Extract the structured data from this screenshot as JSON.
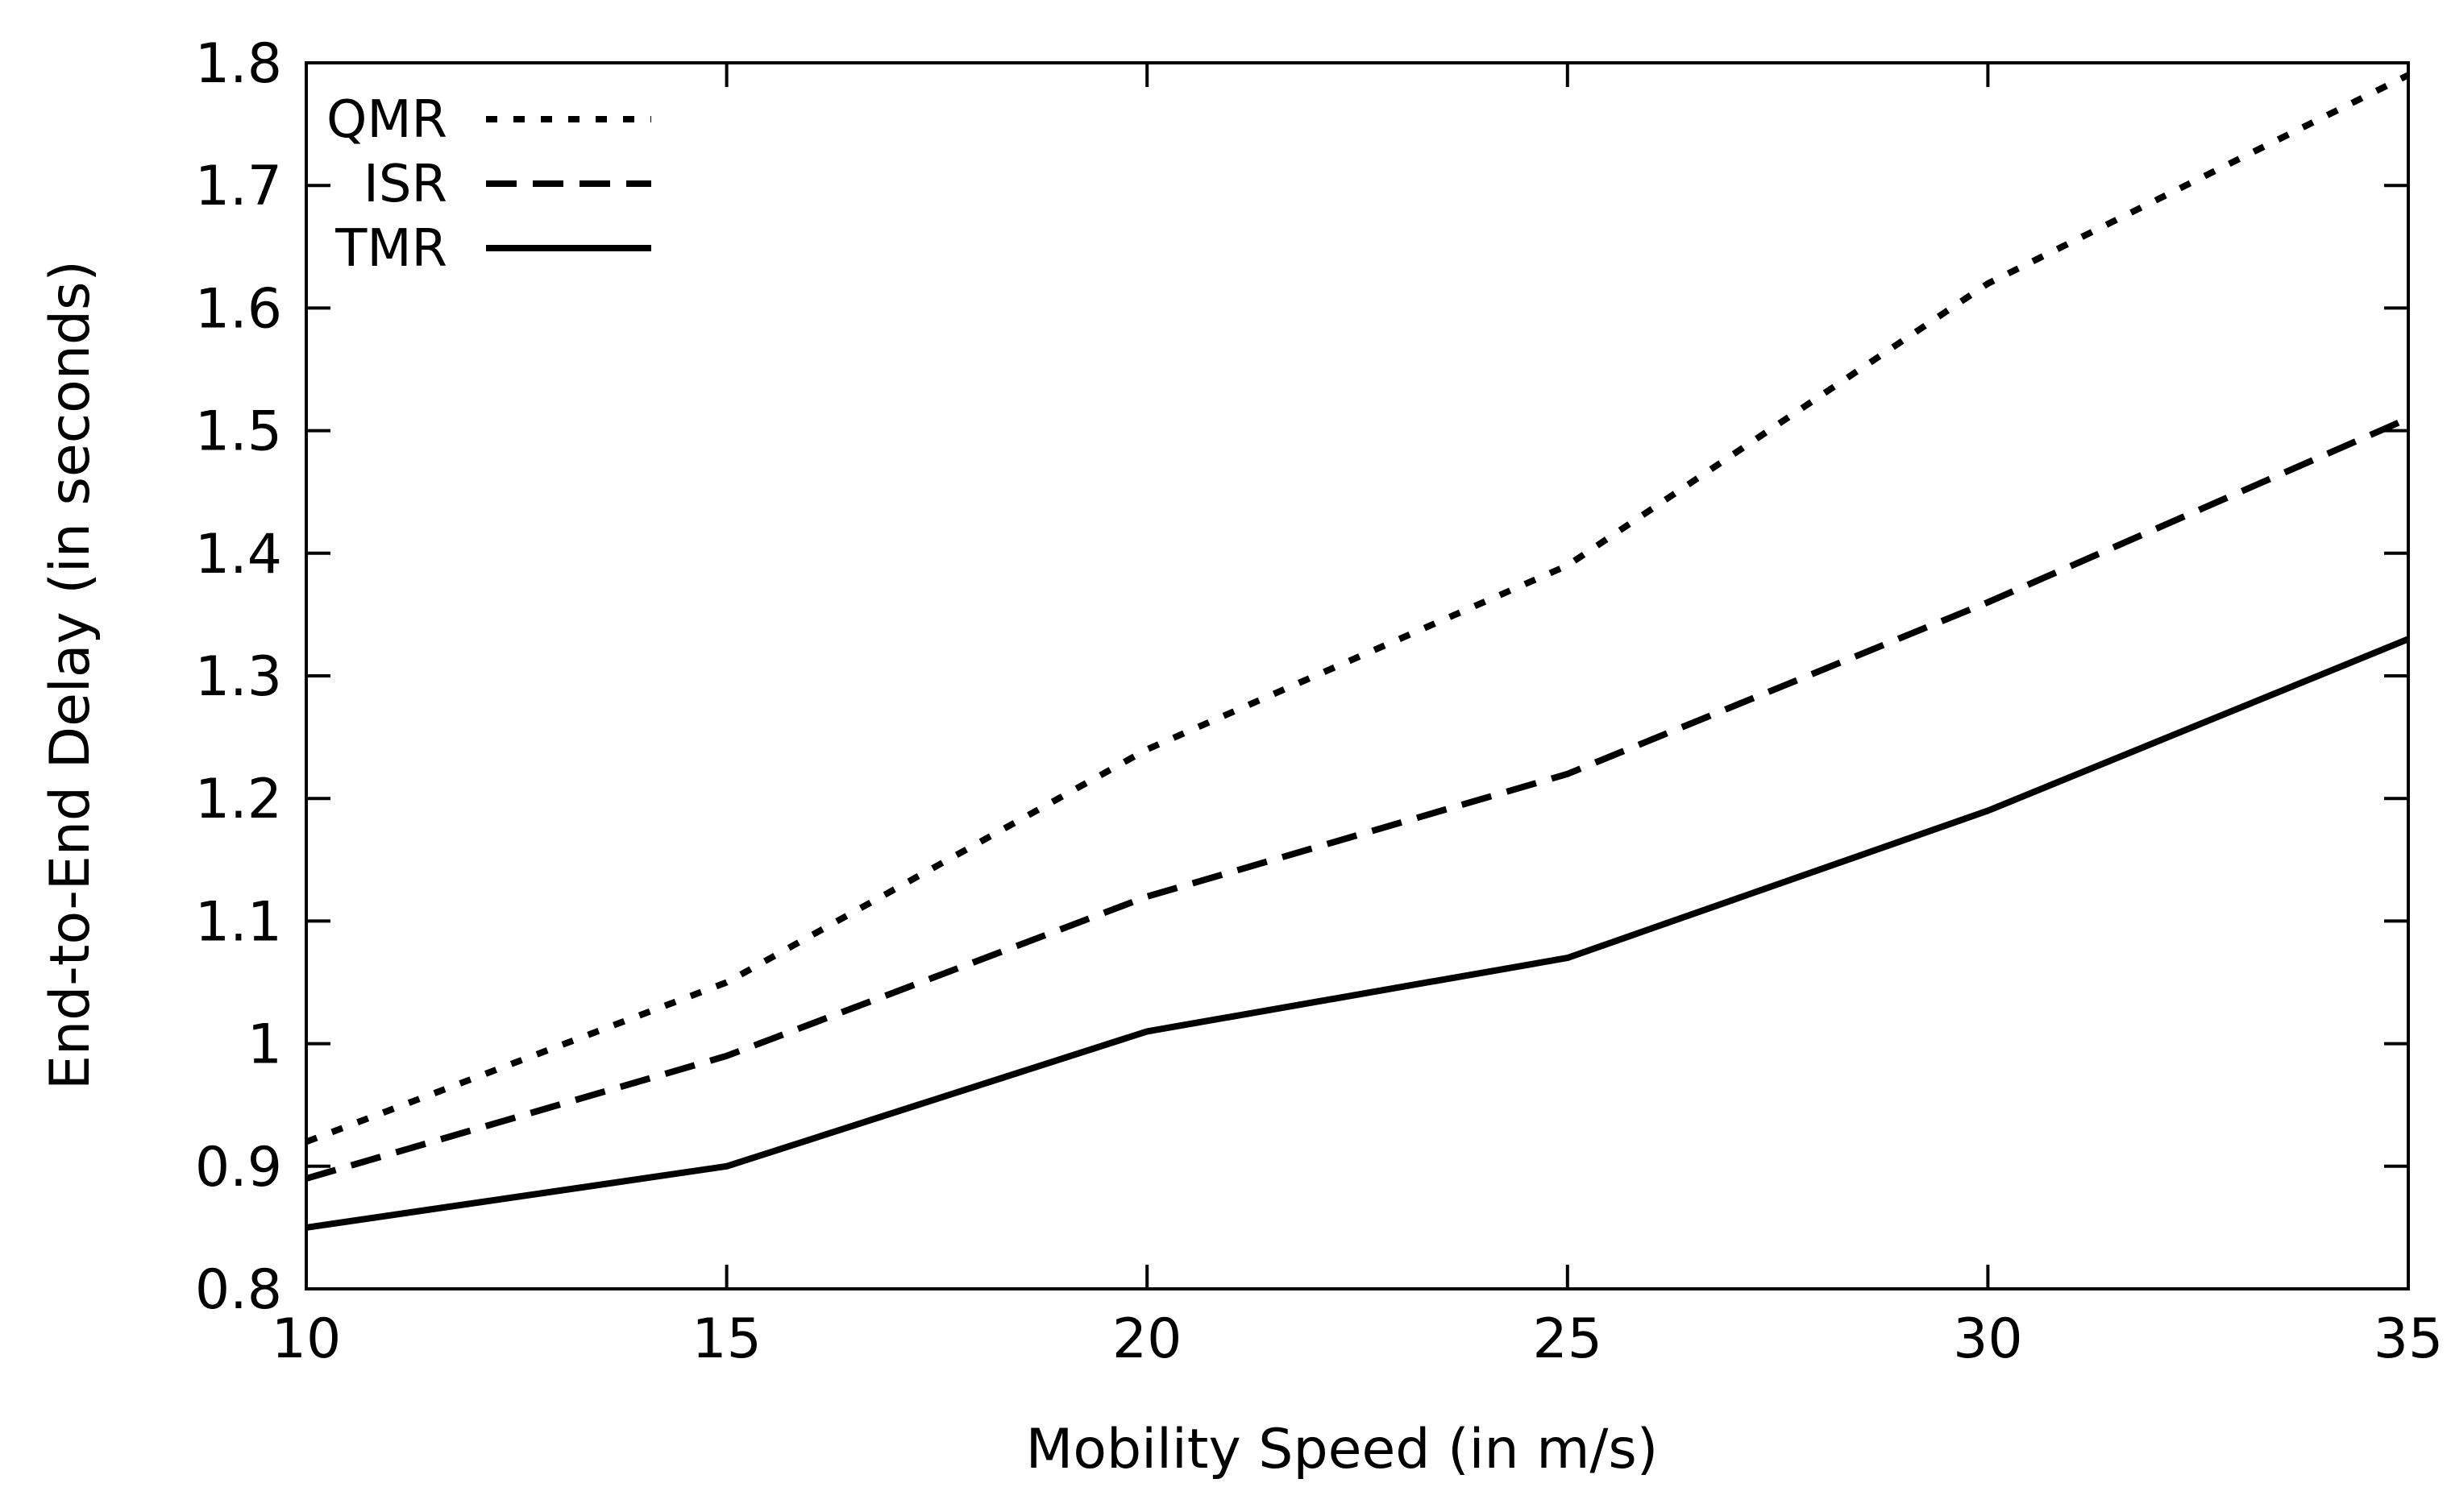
{
  "chart_data": {
    "type": "line",
    "title": "",
    "xlabel": "Mobility Speed (in m/s)",
    "ylabel": "End-to-End Delay (in seconds)",
    "x": [
      10,
      15,
      20,
      25,
      30,
      35
    ],
    "xlim": [
      10,
      35
    ],
    "ylim": [
      0.8,
      1.8
    ],
    "x_ticks": [
      10,
      15,
      20,
      25,
      30,
      35
    ],
    "y_ticks": [
      0.8,
      0.9,
      1,
      1.1,
      1.2,
      1.3,
      1.4,
      1.5,
      1.6,
      1.7,
      1.8
    ],
    "x_tick_labels": [
      "10",
      "15",
      "20",
      "25",
      "30",
      "35"
    ],
    "y_tick_labels": [
      "0.8",
      "0.9",
      "1",
      "1.1",
      "1.2",
      "1.3",
      "1.4",
      "1.5",
      "1.6",
      "1.7",
      "1.8"
    ],
    "grid": false,
    "legend_position": "top-left",
    "series": [
      {
        "name": "QMR",
        "style": "dotted",
        "values": [
          0.92,
          1.05,
          1.24,
          1.39,
          1.62,
          1.79
        ]
      },
      {
        "name": "ISR",
        "style": "dashed",
        "values": [
          0.89,
          0.99,
          1.12,
          1.22,
          1.36,
          1.51
        ]
      },
      {
        "name": "TMR",
        "style": "solid",
        "values": [
          0.85,
          0.9,
          1.01,
          1.07,
          1.19,
          1.33
        ]
      }
    ],
    "line_color": "#000000",
    "background_color": "#ffffff"
  }
}
